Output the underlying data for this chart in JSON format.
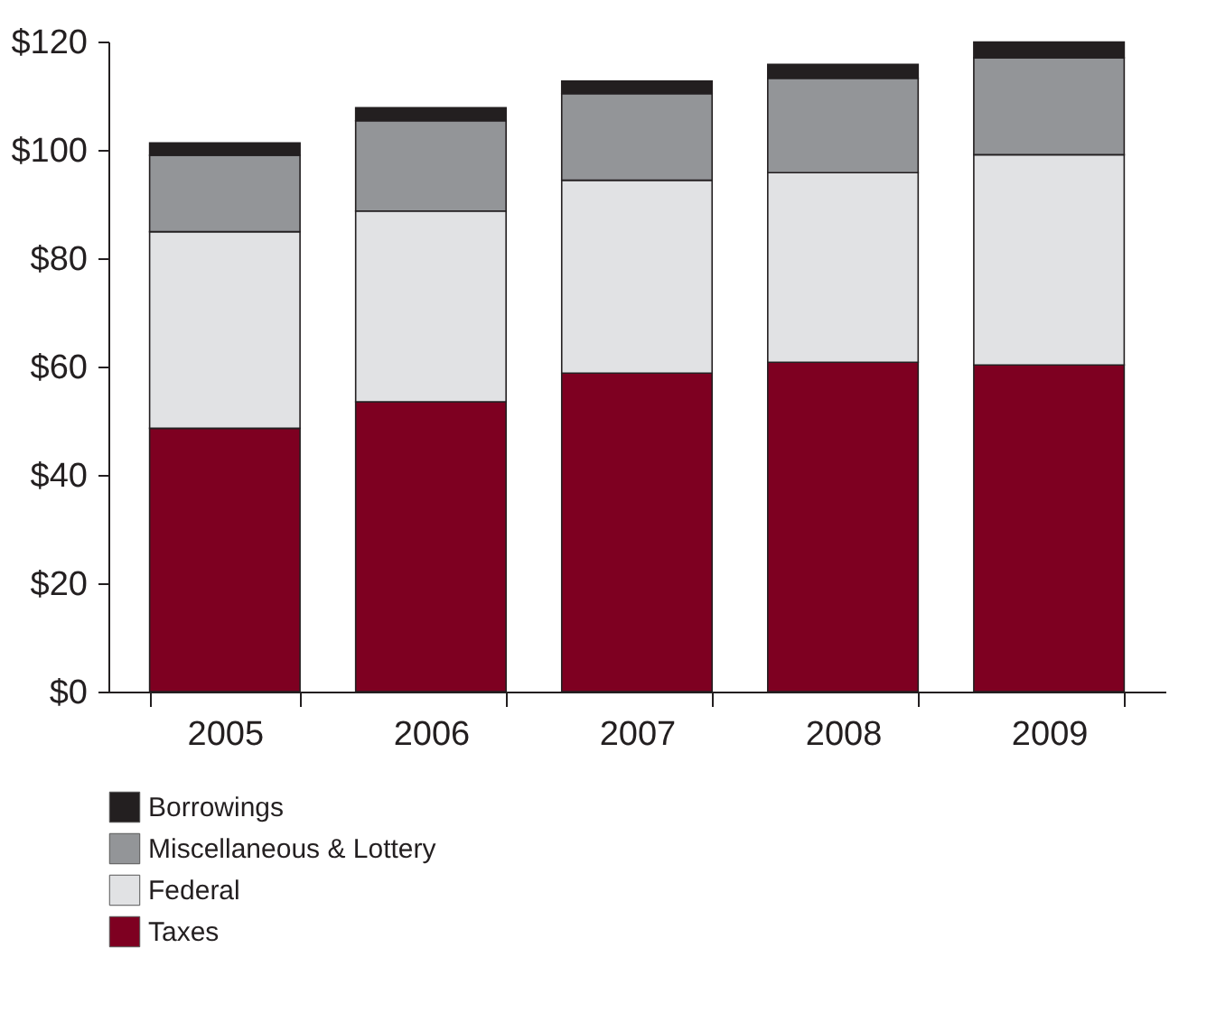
{
  "chart_data": {
    "type": "bar",
    "stacked": true,
    "categories": [
      "2005",
      "2006",
      "2007",
      "2008",
      "2009"
    ],
    "series": [
      {
        "name": "Taxes",
        "color": "#7e0021",
        "values": [
          48.6,
          53.5,
          58.8,
          60.8,
          60.3
        ]
      },
      {
        "name": "Federal",
        "color": "#e1e2e4",
        "values": [
          36.3,
          35.2,
          35.6,
          35.0,
          38.8
        ]
      },
      {
        "name": "Miscellaneous & Lottery",
        "color": "#939598",
        "values": [
          14.1,
          16.7,
          16.0,
          17.4,
          17.9
        ]
      },
      {
        "name": "Borrowings",
        "color": "#231f20",
        "values": [
          2.3,
          2.4,
          2.3,
          2.6,
          2.9
        ]
      }
    ],
    "ylim": [
      0,
      120
    ],
    "yticks": [
      {
        "value": 0,
        "label": "$0"
      },
      {
        "value": 20,
        "label": "$20"
      },
      {
        "value": 40,
        "label": "$40"
      },
      {
        "value": 60,
        "label": "$60"
      },
      {
        "value": 80,
        "label": "$80"
      },
      {
        "value": 100,
        "label": "$100"
      },
      {
        "value": 120,
        "label": "$120"
      }
    ],
    "grid": false,
    "legend": "bottom left"
  }
}
